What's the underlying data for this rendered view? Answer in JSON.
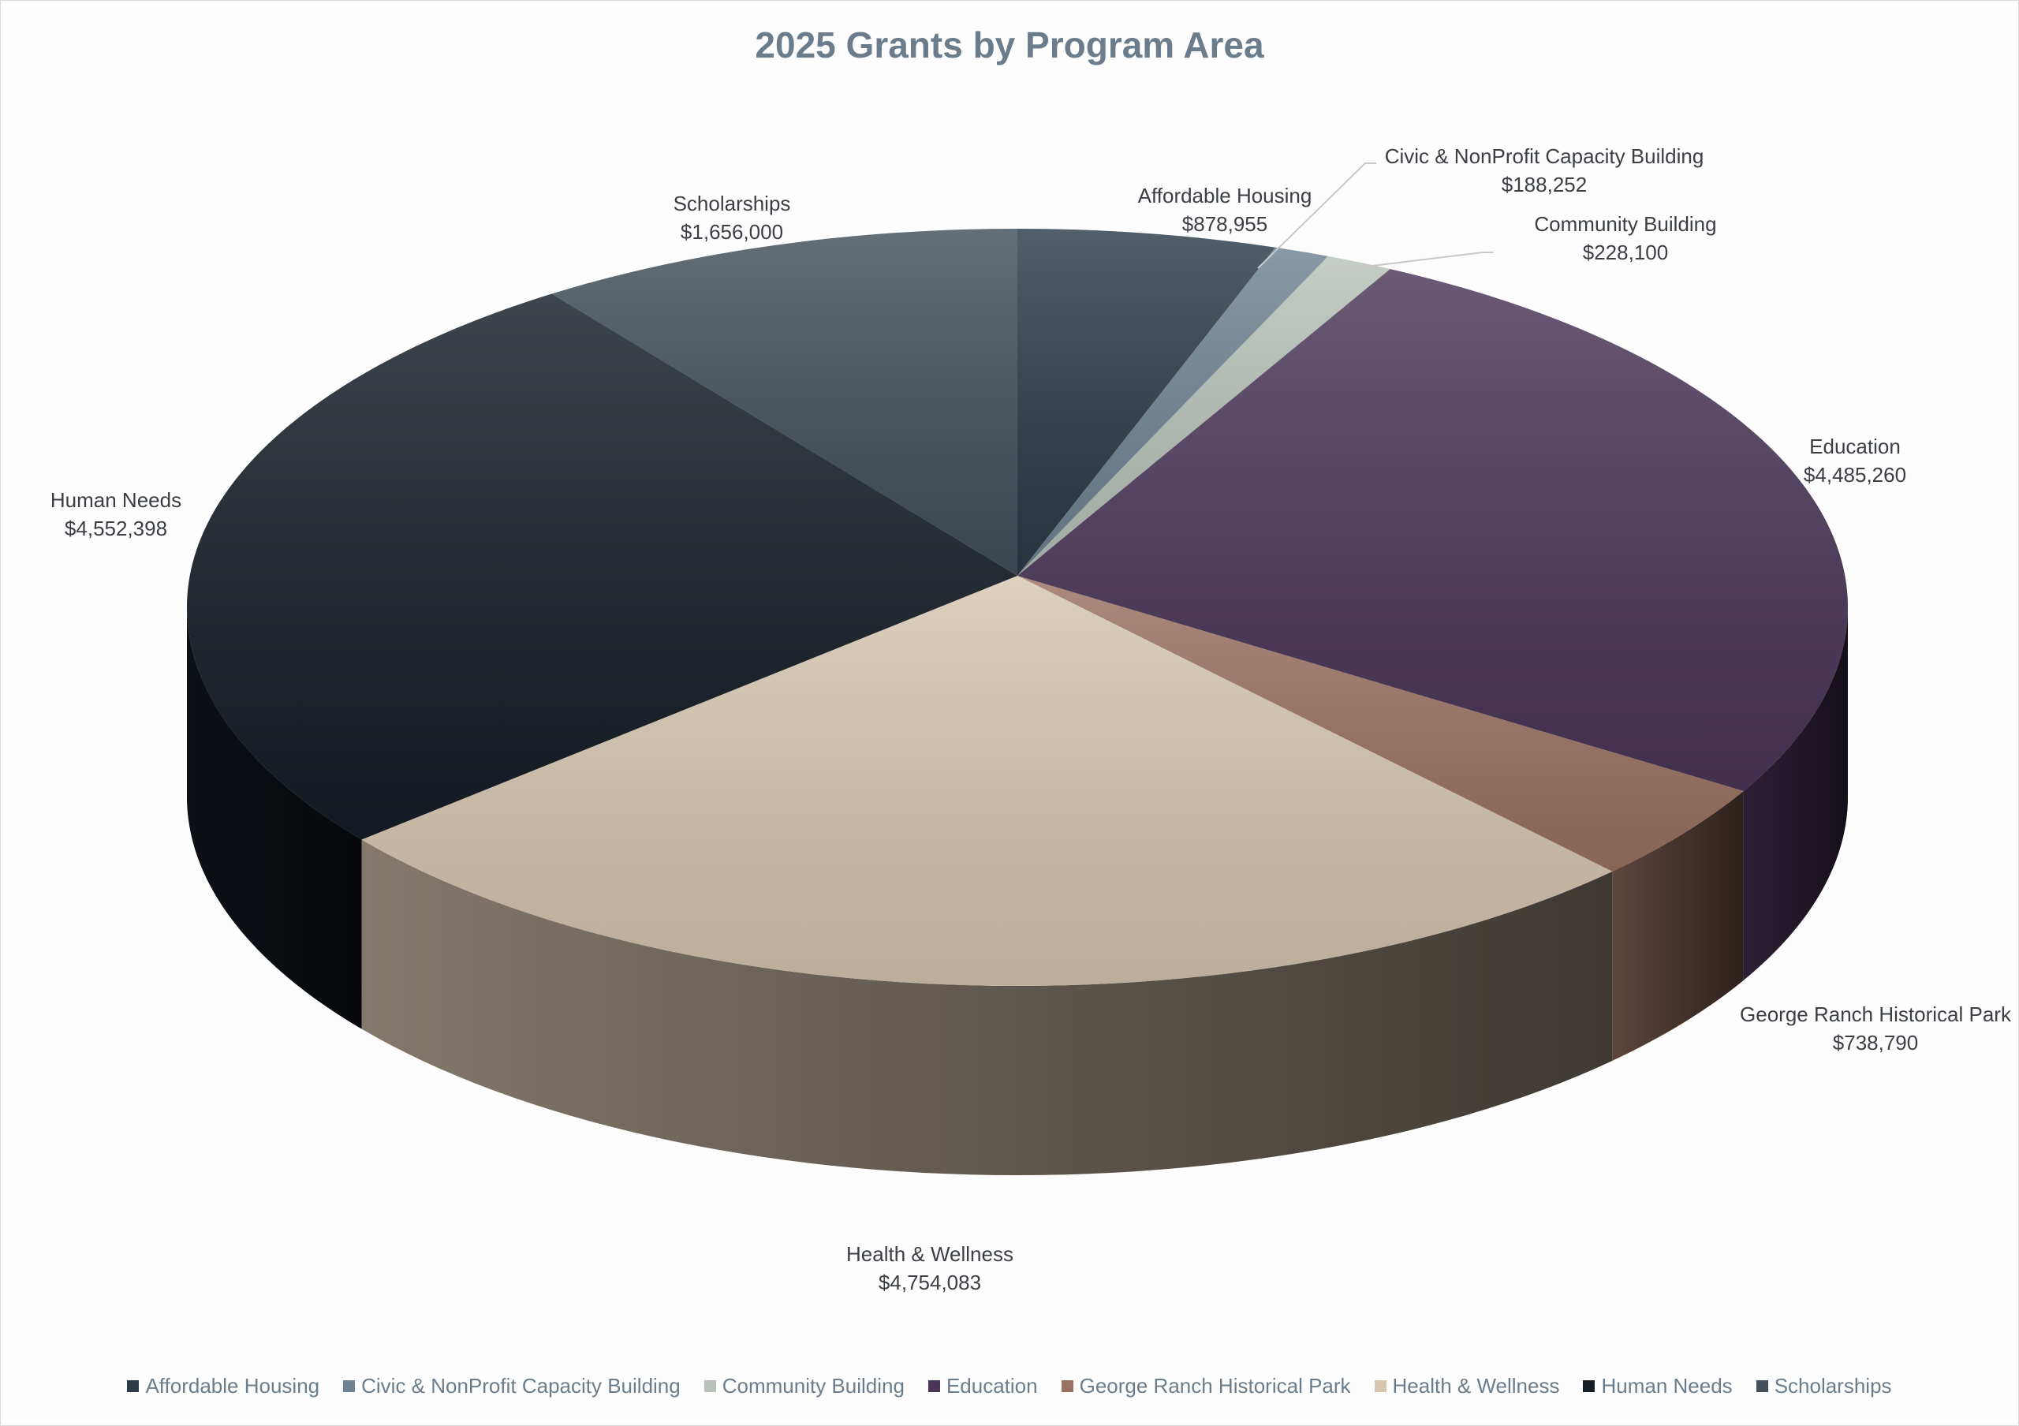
{
  "chart_data": {
    "type": "pie",
    "style": "3d",
    "title": "2025 Grants by Program Area",
    "legend_position": "bottom",
    "slices": [
      {
        "label": "Affordable Housing",
        "value": 878955,
        "display": "$878,955",
        "color": "#2c3b47"
      },
      {
        "label": "Civic & NonProfit Capacity Building",
        "value": 188252,
        "display": "$188,252",
        "color": "#6f8393"
      },
      {
        "label": "Community Building",
        "value": 228100,
        "display": "$228,100",
        "color": "#b8c2ba"
      },
      {
        "label": "Education",
        "value": 4485260,
        "display": "$4,485,260",
        "color": "#4a3658"
      },
      {
        "label": "George Ranch Historical Park",
        "value": 738790,
        "display": "$738,790",
        "color": "#9a7262"
      },
      {
        "label": "Health & Wellness",
        "value": 4754083,
        "display": "$4,754,083",
        "color": "#d6c6b0"
      },
      {
        "label": "Human Needs",
        "value": 4552398,
        "display": "$4,552,398",
        "color": "#151d25"
      },
      {
        "label": "Scholarships",
        "value": 1656000,
        "display": "$1,656,000",
        "color": "#434f59"
      }
    ]
  }
}
